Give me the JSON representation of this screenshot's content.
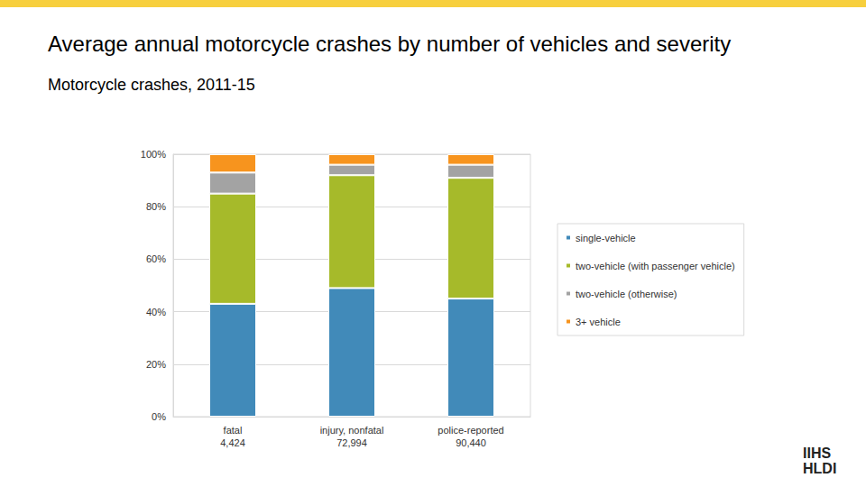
{
  "chart_data": {
    "type": "bar",
    "title": "Average annual motorcycle crashes by number of vehicles and severity",
    "subtitle": "Motorcycle crashes, 2011-15",
    "logo": "IIHS HLDI",
    "categories": [
      "fatal\n4,424",
      "injury, nonfatal\n72,994",
      "police-reported\n90,440"
    ],
    "series": [
      {
        "name": "single-vehicle",
        "color": "#418ab9",
        "values": [
          43,
          49,
          45
        ]
      },
      {
        "name": "two-vehicle (with passenger vehicle)",
        "color": "#a6ba2a",
        "values": [
          42,
          43,
          46
        ]
      },
      {
        "name": "two-vehicle (otherwise)",
        "color": "#a3a3a3",
        "values": [
          8,
          4,
          5
        ]
      },
      {
        "name": "3+ vehicle",
        "color": "#f7941e",
        "values": [
          7,
          4,
          4
        ]
      }
    ],
    "ylim": [
      0,
      100
    ],
    "yticks": [
      {
        "value": 0,
        "label": "0%"
      },
      {
        "value": 20,
        "label": "20%"
      },
      {
        "value": 40,
        "label": "40%"
      },
      {
        "value": 60,
        "label": "60%"
      },
      {
        "value": 80,
        "label": "80%"
      },
      {
        "value": 100,
        "label": "100%"
      }
    ],
    "stacked": true,
    "grid": true,
    "legend": "right"
  }
}
